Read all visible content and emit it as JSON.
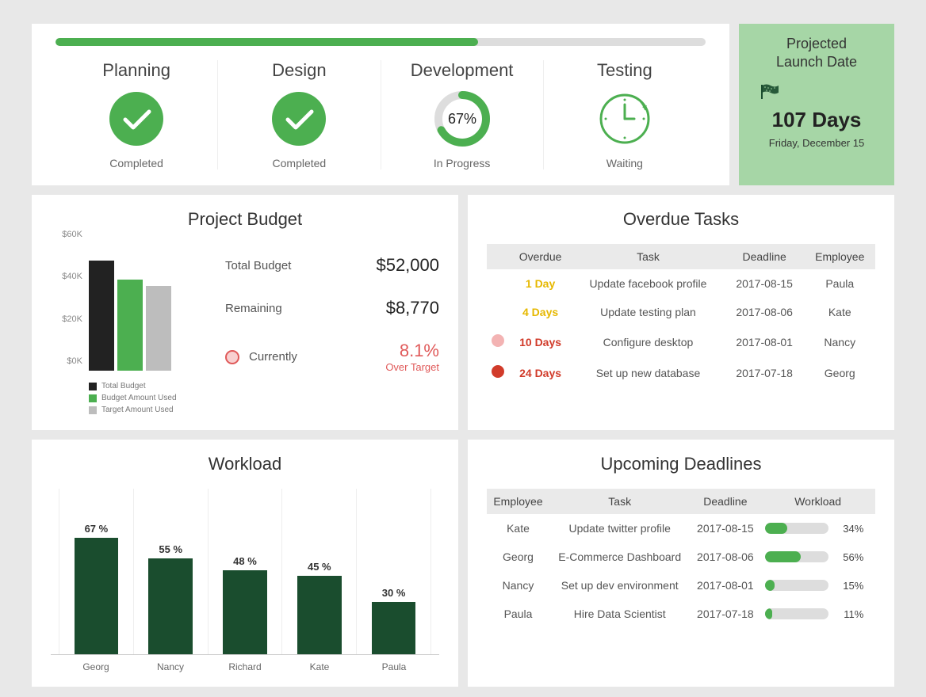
{
  "colors": {
    "green": "#4caf50",
    "green_dark": "#1a4d2e",
    "bar_black": "#222222",
    "bar_green": "#4caf50",
    "bar_grey": "#bdbdbd",
    "grid_bg": "#ffffff",
    "page_bg": "#e8e8e8",
    "launch_bg": "#a6d6a6",
    "red": "#e05a5a",
    "yellow": "#e6b800",
    "orange_red": "#d13b2a"
  },
  "progress": {
    "pct": 65
  },
  "phases": [
    {
      "title": "Planning",
      "status": "Completed",
      "type": "check"
    },
    {
      "title": "Design",
      "status": "Completed",
      "type": "check"
    },
    {
      "title": "Development",
      "status": "In Progress",
      "type": "donut",
      "pct": 67,
      "label": "67%"
    },
    {
      "title": "Testing",
      "status": "Waiting",
      "type": "clock"
    }
  ],
  "launch": {
    "title_line1": "Projected",
    "title_line2": "Launch Date",
    "days": "107 Days",
    "date": "Friday, December 15"
  },
  "budget": {
    "title": "Project Budget",
    "y_ticks": [
      "$0K",
      "$20K",
      "$40K",
      "$60K"
    ],
    "y_max": 60,
    "bars": [
      {
        "label": "Total Budget",
        "value": 52,
        "color": "#222222"
      },
      {
        "label": "Budget Amount Used",
        "value": 43,
        "color": "#4caf50"
      },
      {
        "label": "Target Amount Used",
        "value": 40,
        "color": "#bdbdbd"
      }
    ],
    "stats": {
      "total_label": "Total Budget",
      "total_value": "$52,000",
      "remaining_label": "Remaining",
      "remaining_value": "$8,770",
      "currently_label": "Currently",
      "over_pct": "8.1%",
      "over_label": "Over Target"
    }
  },
  "overdue": {
    "title": "Overdue Tasks",
    "columns": [
      "Overdue",
      "Task",
      "Deadline",
      "Employee"
    ],
    "rows": [
      {
        "dot": null,
        "days": "1 Day",
        "color": "#e6b800",
        "task": "Update facebook profile",
        "deadline": "2017-08-15",
        "employee": "Paula"
      },
      {
        "dot": null,
        "days": "4 Days",
        "color": "#e6b800",
        "task": "Update testing plan",
        "deadline": "2017-08-06",
        "employee": "Kate"
      },
      {
        "dot": "#f3b3b3",
        "days": "10 Days",
        "color": "#d13b2a",
        "task": "Configure desktop",
        "deadline": "2017-08-01",
        "employee": "Nancy"
      },
      {
        "dot": "#d13b2a",
        "days": "24 Days",
        "color": "#d13b2a",
        "task": "Set up new database",
        "deadline": "2017-07-18",
        "employee": "Georg"
      }
    ]
  },
  "workload": {
    "title": "Workload",
    "y_max": 100,
    "bar_color": "#1a4d2e",
    "bars": [
      {
        "name": "Georg",
        "pct": 67
      },
      {
        "name": "Nancy",
        "pct": 55
      },
      {
        "name": "Richard",
        "pct": 48
      },
      {
        "name": "Kate",
        "pct": 45
      },
      {
        "name": "Paula",
        "pct": 30
      }
    ]
  },
  "upcoming": {
    "title": "Upcoming Deadlines",
    "columns": [
      "Employee",
      "Task",
      "Deadline",
      "Workload"
    ],
    "rows": [
      {
        "employee": "Kate",
        "task": "Update twitter profile",
        "deadline": "2017-08-15",
        "pct": 34
      },
      {
        "employee": "Georg",
        "task": "E-Commerce Dashboard",
        "deadline": "2017-08-06",
        "pct": 56
      },
      {
        "employee": "Nancy",
        "task": "Set up dev environment",
        "deadline": "2017-08-01",
        "pct": 15
      },
      {
        "employee": "Paula",
        "task": "Hire Data Scientist",
        "deadline": "2017-07-18",
        "pct": 11
      }
    ]
  }
}
